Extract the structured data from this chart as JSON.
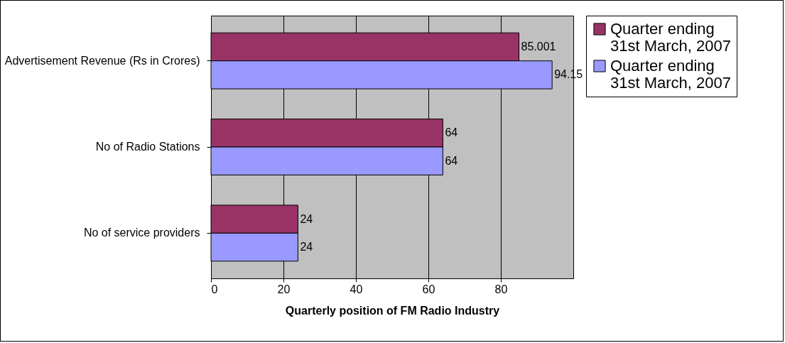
{
  "chart_data": {
    "type": "bar",
    "orientation": "horizontal",
    "xlabel": "Quarterly position of FM Radio Industry",
    "categories": [
      "Advertisement Revenue (Rs in Crores)",
      "No of Radio Stations",
      "No of service providers"
    ],
    "series": [
      {
        "name": "Quarter ending 31st March, 2007",
        "color": "#993366",
        "values": [
          85.001,
          64,
          24
        ]
      },
      {
        "name": "Quarter ending 31st March, 2007",
        "color": "#9999ff",
        "values": [
          94.15,
          64,
          24
        ]
      }
    ],
    "xlim": [
      0,
      100
    ],
    "xticks": [
      0,
      20,
      40,
      60,
      80
    ],
    "grid": "x",
    "legend": "right",
    "data_labels": true
  }
}
